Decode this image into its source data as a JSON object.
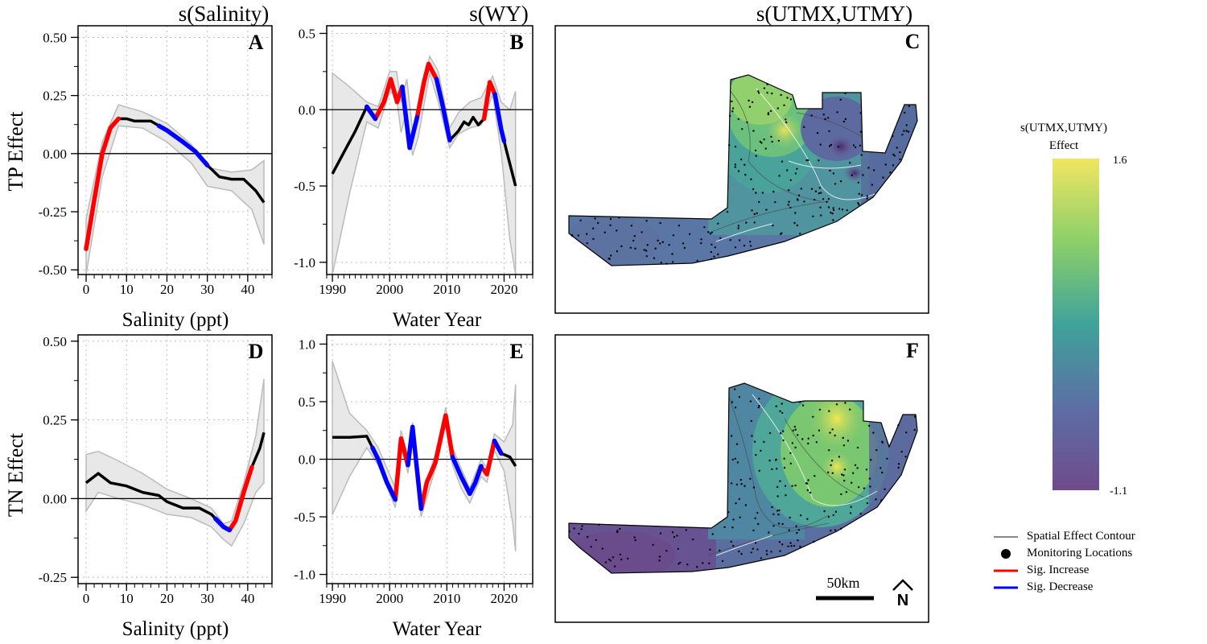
{
  "panels": [
    {
      "id": "A",
      "title": "s(Salinity)",
      "xlabel": "Salinity (ppt)",
      "ylabel": "TP Effect",
      "xlim": [
        -2,
        46
      ],
      "ylim": [
        -0.52,
        0.55
      ],
      "xticks": [
        0,
        10,
        20,
        30,
        40
      ],
      "xtick_labels": [
        "0",
        "10",
        "20",
        "30",
        "40"
      ],
      "yticks": [
        -0.5,
        -0.25,
        0,
        0.25,
        0.5
      ],
      "ytick_labels": [
        "-0.50",
        "-0.25",
        "0.00",
        "0.25",
        "0.50"
      ],
      "minor_x_step": 2,
      "minor_y_step": 0.125,
      "ci_upper": [
        [
          0,
          -0.28
        ],
        [
          4,
          0.05
        ],
        [
          8,
          0.21
        ],
        [
          14,
          0.18
        ],
        [
          20,
          0.13
        ],
        [
          26,
          0.04
        ],
        [
          30,
          -0.06
        ],
        [
          36,
          -0.08
        ],
        [
          41,
          -0.07
        ],
        [
          44,
          -0.03
        ]
      ],
      "ci_lower": [
        [
          0,
          -0.52
        ],
        [
          4,
          -0.1
        ],
        [
          8,
          0.12
        ],
        [
          14,
          0.11
        ],
        [
          20,
          0.05
        ],
        [
          26,
          -0.04
        ],
        [
          30,
          -0.14
        ],
        [
          36,
          -0.16
        ],
        [
          41,
          -0.24
        ],
        [
          44,
          -0.39
        ]
      ],
      "line": [
        [
          0,
          -0.41
        ],
        [
          2,
          -0.2
        ],
        [
          4,
          0.0
        ],
        [
          6,
          0.11
        ],
        [
          8,
          0.15
        ],
        [
          10,
          0.15
        ],
        [
          12,
          0.14
        ],
        [
          16,
          0.14
        ],
        [
          20,
          0.1
        ],
        [
          24,
          0.05
        ],
        [
          27,
          0.01
        ],
        [
          30,
          -0.05
        ],
        [
          33,
          -0.1
        ],
        [
          36,
          -0.11
        ],
        [
          39,
          -0.11
        ],
        [
          42,
          -0.16
        ],
        [
          44,
          -0.21
        ]
      ],
      "sig_increase": [
        [
          0,
          8
        ]
      ],
      "sig_decrease": [
        [
          18,
          30
        ]
      ]
    },
    {
      "id": "B",
      "title": "s(WY)",
      "xlabel": "Water Year",
      "ylabel": "",
      "xlim": [
        1989,
        2025
      ],
      "ylim": [
        -1.08,
        0.55
      ],
      "xticks": [
        1990,
        2000,
        2010,
        2020
      ],
      "xtick_labels": [
        "1990",
        "2000",
        "2010",
        "2020"
      ],
      "yticks": [
        -1.0,
        -0.5,
        0,
        0.5
      ],
      "ytick_labels": [
        "-1.0",
        "-0.5",
        "0.0",
        "0.5"
      ],
      "minor_x_step": 1,
      "minor_y_step": 0.25,
      "ci_upper": [
        [
          1990,
          0.24
        ],
        [
          1993,
          0.15
        ],
        [
          1996,
          0.05
        ],
        [
          1998,
          0.02
        ],
        [
          2000,
          0.25
        ],
        [
          2001.2,
          0.25
        ],
        [
          2002,
          0.05
        ],
        [
          2003,
          0.2
        ],
        [
          2004,
          -0.14
        ],
        [
          2005,
          0.02
        ],
        [
          2007,
          0.35
        ],
        [
          2008.5,
          0.25
        ],
        [
          2010.5,
          -0.12
        ],
        [
          2012,
          -0.02
        ],
        [
          2014,
          0.05
        ],
        [
          2016,
          0.08
        ],
        [
          2018,
          0.22
        ],
        [
          2019.5,
          0.05
        ],
        [
          2021,
          0.0
        ],
        [
          2022,
          0.12
        ]
      ],
      "ci_lower": [
        [
          1990,
          -1.08
        ],
        [
          1993,
          -0.55
        ],
        [
          1996,
          -0.08
        ],
        [
          1998,
          -0.12
        ],
        [
          2000,
          0.12
        ],
        [
          2001.2,
          0.08
        ],
        [
          2002,
          -0.15
        ],
        [
          2003,
          0.0
        ],
        [
          2004,
          -0.3
        ],
        [
          2005,
          -0.18
        ],
        [
          2007,
          0.24
        ],
        [
          2008.5,
          0.05
        ],
        [
          2010.5,
          -0.25
        ],
        [
          2012,
          -0.16
        ],
        [
          2014,
          -0.12
        ],
        [
          2016,
          -0.1
        ],
        [
          2018,
          0.1
        ],
        [
          2019.5,
          -0.28
        ],
        [
          2021,
          -0.85
        ],
        [
          2022,
          -1.08
        ]
      ],
      "line": [
        [
          1990,
          -0.42
        ],
        [
          1992,
          -0.28
        ],
        [
          1994,
          -0.14
        ],
        [
          1996,
          0.02
        ],
        [
          1997.5,
          -0.06
        ],
        [
          1999,
          0.05
        ],
        [
          2000.2,
          0.2
        ],
        [
          2001.3,
          0.05
        ],
        [
          2002.2,
          0.15
        ],
        [
          2003.5,
          -0.25
        ],
        [
          2004.8,
          -0.05
        ],
        [
          2006,
          0.18
        ],
        [
          2006.8,
          0.3
        ],
        [
          2008.2,
          0.2
        ],
        [
          2009.3,
          0.02
        ],
        [
          2010.5,
          -0.2
        ],
        [
          2012,
          -0.14
        ],
        [
          2013,
          -0.08
        ],
        [
          2013.8,
          -0.1
        ],
        [
          2014.6,
          -0.05
        ],
        [
          2015.5,
          -0.1
        ],
        [
          2016.5,
          -0.06
        ],
        [
          2017.5,
          0.18
        ],
        [
          2018.4,
          0.1
        ],
        [
          2019.5,
          -0.13
        ],
        [
          2020.5,
          -0.28
        ],
        [
          2022,
          -0.5
        ]
      ],
      "sig_increase": [
        [
          1997.5,
          2002.2
        ],
        [
          2004.8,
          2008.2
        ],
        [
          2016.5,
          2018.4
        ]
      ],
      "sig_decrease": [
        [
          1996,
          1997.5
        ],
        [
          2002.2,
          2004.8
        ],
        [
          2008.2,
          2010.5
        ],
        [
          2018.4,
          2020
        ]
      ]
    },
    {
      "id": "D",
      "title": "",
      "xlabel": "Salinity (ppt)",
      "ylabel": "TN Effect",
      "xlim": [
        -2,
        46
      ],
      "ylim": [
        -0.27,
        0.52
      ],
      "xticks": [
        0,
        10,
        20,
        30,
        40
      ],
      "xtick_labels": [
        "0",
        "10",
        "20",
        "30",
        "40"
      ],
      "yticks": [
        -0.25,
        0,
        0.25,
        0.5
      ],
      "ytick_labels": [
        "-0.25",
        "0.00",
        "0.25",
        "0.50"
      ],
      "minor_x_step": 2,
      "minor_y_step": 0.125,
      "ci_upper": [
        [
          0,
          0.14
        ],
        [
          3,
          0.15
        ],
        [
          8,
          0.12
        ],
        [
          14,
          0.08
        ],
        [
          20,
          0.03
        ],
        [
          26,
          0.0
        ],
        [
          31,
          -0.03
        ],
        [
          34,
          -0.08
        ],
        [
          36,
          -0.07
        ],
        [
          39,
          0.05
        ],
        [
          42,
          0.2
        ],
        [
          44,
          0.38
        ]
      ],
      "ci_lower": [
        [
          0,
          -0.04
        ],
        [
          3,
          0.02
        ],
        [
          8,
          0.0
        ],
        [
          14,
          -0.02
        ],
        [
          20,
          -0.05
        ],
        [
          26,
          -0.06
        ],
        [
          31,
          -0.09
        ],
        [
          34,
          -0.13
        ],
        [
          36,
          -0.15
        ],
        [
          39,
          -0.08
        ],
        [
          42,
          0.02
        ],
        [
          44,
          0.05
        ]
      ],
      "line": [
        [
          0,
          0.05
        ],
        [
          3,
          0.08
        ],
        [
          6,
          0.05
        ],
        [
          10,
          0.04
        ],
        [
          14,
          0.02
        ],
        [
          18,
          0.01
        ],
        [
          20,
          -0.01
        ],
        [
          24,
          -0.03
        ],
        [
          28,
          -0.03
        ],
        [
          31,
          -0.05
        ],
        [
          34,
          -0.09
        ],
        [
          35.5,
          -0.1
        ],
        [
          37,
          -0.07
        ],
        [
          39,
          0.02
        ],
        [
          41,
          0.1
        ],
        [
          43,
          0.16
        ],
        [
          44,
          0.21
        ]
      ],
      "sig_increase": [
        [
          35.5,
          41
        ]
      ],
      "sig_decrease": [
        [
          32,
          35.5
        ]
      ]
    },
    {
      "id": "E",
      "title": "",
      "xlabel": "Water Year",
      "ylabel": "",
      "xlim": [
        1989,
        2025
      ],
      "ylim": [
        -1.08,
        1.08
      ],
      "xticks": [
        1990,
        2000,
        2010,
        2020
      ],
      "xtick_labels": [
        "1990",
        "2000",
        "2010",
        "2020"
      ],
      "yticks": [
        -1.0,
        -0.5,
        0,
        0.5,
        1.0
      ],
      "ytick_labels": [
        "-1.0",
        "-0.5",
        "0.0",
        "0.5",
        "1.0"
      ],
      "minor_x_step": 1,
      "minor_y_step": 0.25,
      "ci_upper": [
        [
          1990,
          0.85
        ],
        [
          1993,
          0.4
        ],
        [
          1996,
          0.25
        ],
        [
          1998,
          0.1
        ],
        [
          2001,
          -0.25
        ],
        [
          2002,
          0.25
        ],
        [
          2003.2,
          0.02
        ],
        [
          2004,
          0.32
        ],
        [
          2005.5,
          -0.35
        ],
        [
          2008,
          0.05
        ],
        [
          2009.8,
          0.45
        ],
        [
          2011,
          0.1
        ],
        [
          2012.5,
          -0.08
        ],
        [
          2014,
          -0.25
        ],
        [
          2016,
          0.0
        ],
        [
          2017,
          -0.08
        ],
        [
          2018.3,
          0.22
        ],
        [
          2020,
          0.15
        ],
        [
          2021.5,
          0.3
        ],
        [
          2022,
          0.65
        ]
      ],
      "ci_lower": [
        [
          1990,
          -0.48
        ],
        [
          1993,
          -0.15
        ],
        [
          1996,
          0.1
        ],
        [
          1998,
          -0.05
        ],
        [
          2001,
          -0.42
        ],
        [
          2002,
          0.12
        ],
        [
          2003.2,
          -0.12
        ],
        [
          2004,
          0.2
        ],
        [
          2005.5,
          -0.5
        ],
        [
          2008,
          -0.08
        ],
        [
          2009.8,
          0.32
        ],
        [
          2011,
          -0.05
        ],
        [
          2012.5,
          -0.25
        ],
        [
          2014,
          -0.38
        ],
        [
          2016,
          -0.15
        ],
        [
          2017,
          -0.2
        ],
        [
          2018.3,
          0.08
        ],
        [
          2020,
          -0.1
        ],
        [
          2021.5,
          -0.55
        ],
        [
          2022,
          -0.8
        ]
      ],
      "line": [
        [
          1990,
          0.19
        ],
        [
          1993,
          0.19
        ],
        [
          1996,
          0.2
        ],
        [
          1998,
          0.0
        ],
        [
          1999.5,
          -0.2
        ],
        [
          2001,
          -0.35
        ],
        [
          2002,
          0.18
        ],
        [
          2003.2,
          -0.05
        ],
        [
          2004,
          0.28
        ],
        [
          2005.5,
          -0.43
        ],
        [
          2006.5,
          -0.2
        ],
        [
          2008,
          -0.03
        ],
        [
          2009.8,
          0.38
        ],
        [
          2011,
          0.02
        ],
        [
          2012.5,
          -0.15
        ],
        [
          2014,
          -0.3
        ],
        [
          2015,
          -0.2
        ],
        [
          2016,
          -0.06
        ],
        [
          2017,
          -0.13
        ],
        [
          2018.3,
          0.16
        ],
        [
          2019.5,
          0.05
        ],
        [
          2021,
          0.02
        ],
        [
          2022,
          -0.06
        ]
      ],
      "sig_increase": [
        [
          2001,
          2003.2
        ],
        [
          2005.5,
          2011
        ],
        [
          2016.5,
          2018.3
        ]
      ],
      "sig_decrease": [
        [
          1997,
          2001
        ],
        [
          2003.2,
          2005.5
        ],
        [
          2011,
          2016
        ],
        [
          2018.3,
          2019.5
        ]
      ]
    }
  ],
  "maps": [
    {
      "id": "C",
      "title": "s(UTMX,UTMY)",
      "variant": "tp"
    },
    {
      "id": "F",
      "title": "",
      "variant": "tn",
      "scalebar_label": "50km",
      "north_label": "N"
    }
  ],
  "colorbar": {
    "title_line1": "s(UTMX,UTMY)",
    "title_line2": "Effect",
    "max_label": "1.6",
    "min_label": "-1.1",
    "colors": [
      "#440154",
      "#3b528b",
      "#21918c",
      "#5ec962",
      "#fde725"
    ]
  },
  "legend": {
    "items": [
      {
        "label": "Spatial Effect Contour",
        "kind": "line",
        "color": "#888888"
      },
      {
        "label": "Monitoring Locations",
        "kind": "dot",
        "color": "#000000"
      },
      {
        "label": "Sig. Increase",
        "kind": "line",
        "color": "#ff0000"
      },
      {
        "label": "Sig. Decrease",
        "kind": "line",
        "color": "#0000ff"
      }
    ]
  },
  "colors": {
    "increase": "#ff0000",
    "decrease": "#0000ff",
    "fit": "#000000",
    "band": "#e8e8e8",
    "band_edge": "#bbbbbb",
    "grid": "#bfbfbf"
  }
}
